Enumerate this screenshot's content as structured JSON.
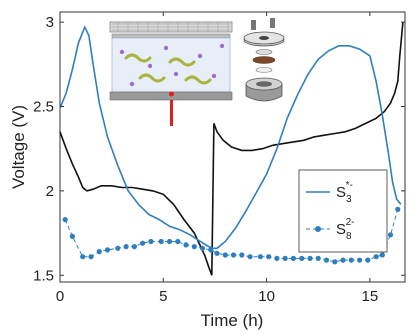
{
  "chart_data": {
    "type": "line",
    "xlabel": "Time (h)",
    "ylabel": "Voltage (V)",
    "xlim": [
      0,
      16.7
    ],
    "ylim": [
      1.46,
      3.06
    ],
    "xticks": [
      "0",
      "5",
      "10",
      "15"
    ],
    "yticks": [
      "1.5",
      "2",
      "2.5",
      "3"
    ],
    "grid": false,
    "legend_position": "right",
    "series": [
      {
        "name": "S3*-",
        "label_base": "S",
        "label_sub": "3",
        "label_sup": "*-",
        "color": "#2e7fc0",
        "marker": "none",
        "x": [
          0,
          0.3,
          0.6,
          0.9,
          1.2,
          1.4,
          1.6,
          1.9,
          2.3,
          2.8,
          3.3,
          3.8,
          4.3,
          4.8,
          5.3,
          5.8,
          6.3,
          6.8,
          7.2,
          7.4,
          7.6,
          8.0,
          8.5,
          9.0,
          9.5,
          10.0,
          10.5,
          11.0,
          11.5,
          12.0,
          12.5,
          13.0,
          13.5,
          14.0,
          14.5,
          15.0,
          15.3,
          15.6,
          15.9,
          16.1,
          16.3,
          16.5
        ],
        "y": [
          2.49,
          2.58,
          2.72,
          2.88,
          2.97,
          2.92,
          2.75,
          2.52,
          2.32,
          2.15,
          2.0,
          1.92,
          1.86,
          1.83,
          1.79,
          1.77,
          1.74,
          1.7,
          1.67,
          1.66,
          1.66,
          1.7,
          1.78,
          1.88,
          1.99,
          2.1,
          2.25,
          2.43,
          2.57,
          2.69,
          2.78,
          2.83,
          2.86,
          2.86,
          2.84,
          2.8,
          2.65,
          2.45,
          2.22,
          2.05,
          1.95,
          1.92
        ]
      },
      {
        "name": "S8 2-",
        "label_base": "S",
        "label_sub": "8",
        "label_sup": "2-",
        "color": "#2e7fc0",
        "marker": "circle",
        "x": [
          0.25,
          0.6,
          1.1,
          1.5,
          1.9,
          2.3,
          2.8,
          3.2,
          3.6,
          4.0,
          4.4,
          4.9,
          5.3,
          5.7,
          6.1,
          6.5,
          6.9,
          7.3,
          7.6,
          8.0,
          8.4,
          8.8,
          9.2,
          9.7,
          10.1,
          10.5,
          10.9,
          11.3,
          11.7,
          12.1,
          12.5,
          12.9,
          13.3,
          13.7,
          14.1,
          14.5,
          14.9,
          15.3,
          15.6,
          16.0,
          16.35
        ],
        "y": [
          1.83,
          1.73,
          1.61,
          1.61,
          1.64,
          1.65,
          1.66,
          1.67,
          1.67,
          1.69,
          1.7,
          1.7,
          1.7,
          1.7,
          1.68,
          1.67,
          1.66,
          1.65,
          1.63,
          1.62,
          1.62,
          1.62,
          1.61,
          1.61,
          1.61,
          1.6,
          1.6,
          1.6,
          1.6,
          1.6,
          1.6,
          1.59,
          1.58,
          1.59,
          1.59,
          1.59,
          1.59,
          1.61,
          1.62,
          1.74,
          1.89
        ]
      },
      {
        "name": "voltage",
        "color": "#111111",
        "marker": "none",
        "show_in_legend": false,
        "x": [
          0,
          0.3,
          0.6,
          0.9,
          1.1,
          1.3,
          1.6,
          2.0,
          2.5,
          3.0,
          3.5,
          4.0,
          4.5,
          5.0,
          5.5,
          6.0,
          6.5,
          7.0,
          7.2,
          7.35,
          7.45,
          7.6,
          7.9,
          8.3,
          8.8,
          9.3,
          9.8,
          10.3,
          10.8,
          11.3,
          11.8,
          12.3,
          12.8,
          13.3,
          13.8,
          14.3,
          14.8,
          15.3,
          15.7,
          16.0,
          16.2,
          16.35,
          16.45,
          16.6
        ],
        "y": [
          2.35,
          2.25,
          2.16,
          2.08,
          2.02,
          2.0,
          2.01,
          2.03,
          2.03,
          2.02,
          2.02,
          2.01,
          2.0,
          1.98,
          1.92,
          1.83,
          1.75,
          1.62,
          1.55,
          1.5,
          2.4,
          2.35,
          2.3,
          2.26,
          2.24,
          2.24,
          2.25,
          2.27,
          2.28,
          2.29,
          2.3,
          2.32,
          2.33,
          2.34,
          2.35,
          2.37,
          2.4,
          2.43,
          2.47,
          2.52,
          2.58,
          2.65,
          2.8,
          3.0
        ]
      }
    ]
  }
}
